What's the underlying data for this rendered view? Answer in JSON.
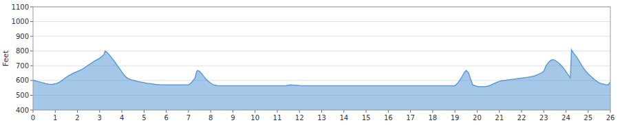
{
  "chart_data": {
    "type": "area",
    "ylabel": "Feet",
    "color": "#5b9bd5",
    "grid": true,
    "xlim": [
      0,
      26
    ],
    "ylim": [
      400,
      1100
    ],
    "xticks": [
      0,
      1,
      2,
      3,
      4,
      5,
      6,
      7,
      8,
      9,
      10,
      11,
      12,
      13,
      14,
      15,
      16,
      17,
      18,
      19,
      20,
      21,
      22,
      23,
      24,
      25,
      26
    ],
    "yticks": [
      400,
      500,
      600,
      700,
      800,
      900,
      1000,
      1100
    ],
    "x": [
      0,
      0.05,
      0.1,
      0.15,
      0.2,
      0.3,
      0.4,
      0.5,
      0.6,
      0.7,
      0.8,
      0.9,
      1.0,
      1.1,
      1.2,
      1.3,
      1.4,
      1.5,
      1.6,
      1.7,
      1.8,
      1.9,
      2.0,
      2.1,
      2.2,
      2.3,
      2.4,
      2.5,
      2.6,
      2.7,
      2.8,
      2.9,
      3.0,
      3.1,
      3.2,
      3.25,
      3.3,
      3.4,
      3.5,
      3.6,
      3.7,
      3.8,
      3.9,
      4.0,
      4.1,
      4.2,
      4.3,
      4.4,
      4.5,
      4.6,
      4.7,
      4.8,
      4.9,
      5.0,
      5.1,
      5.2,
      5.3,
      5.4,
      5.5,
      5.6,
      5.65,
      5.7,
      5.8,
      5.9,
      6.0,
      6.1,
      6.2,
      6.3,
      6.4,
      6.5,
      6.6,
      6.7,
      6.8,
      6.9,
      7.0,
      7.1,
      7.2,
      7.3,
      7.35,
      7.4,
      7.5,
      7.6,
      7.7,
      7.8,
      7.9,
      8.0,
      8.1,
      8.2,
      8.3,
      8.4,
      8.5,
      8.6,
      8.7,
      8.8,
      8.9,
      9.0,
      9.2,
      9.4,
      9.6,
      9.8,
      10.0,
      10.2,
      10.4,
      10.6,
      10.8,
      11.0,
      11.2,
      11.4,
      11.5,
      11.6,
      11.8,
      12.0,
      12.2,
      12.4,
      12.6,
      12.8,
      13.0,
      13.2,
      13.4,
      13.6,
      13.8,
      14.0,
      14.2,
      14.4,
      14.6,
      14.8,
      15.0,
      15.2,
      15.4,
      15.6,
      15.8,
      16.0,
      16.2,
      16.4,
      16.6,
      16.8,
      17.0,
      17.2,
      17.4,
      17.6,
      17.8,
      18.0,
      18.2,
      18.4,
      18.6,
      18.8,
      19.0,
      19.1,
      19.2,
      19.3,
      19.4,
      19.5,
      19.6,
      19.8,
      20.0,
      20.2,
      20.4,
      20.5,
      20.6,
      20.7,
      20.8,
      20.9,
      21.0,
      21.1,
      21.2,
      21.3,
      21.4,
      21.5,
      21.6,
      21.7,
      21.8,
      21.9,
      22.0,
      22.1,
      22.2,
      22.3,
      22.4,
      22.5,
      22.6,
      22.7,
      22.8,
      22.9,
      23.0,
      23.05,
      23.1,
      23.2,
      23.3,
      23.4,
      23.5,
      23.6,
      23.7,
      23.8,
      23.9,
      24.0,
      24.1,
      24.2,
      24.25,
      24.3,
      24.4,
      24.5,
      24.6,
      24.7,
      24.8,
      24.9,
      25.0,
      25.1,
      25.2,
      25.3,
      25.4,
      25.5,
      25.6,
      25.7,
      25.8,
      25.9,
      26.0
    ],
    "values": [
      600,
      600,
      598,
      596,
      594,
      590,
      586,
      582,
      578,
      575,
      574,
      575,
      578,
      582,
      590,
      600,
      612,
      622,
      632,
      640,
      648,
      655,
      662,
      668,
      675,
      685,
      695,
      705,
      715,
      725,
      735,
      742,
      752,
      762,
      778,
      800,
      795,
      780,
      762,
      742,
      722,
      700,
      680,
      658,
      638,
      622,
      612,
      606,
      602,
      598,
      594,
      591,
      588,
      585,
      582,
      580,
      578,
      576,
      574,
      572,
      572,
      571,
      570,
      570,
      570,
      570,
      570,
      570,
      570,
      570,
      570,
      570,
      570,
      570,
      572,
      580,
      598,
      618,
      650,
      668,
      662,
      645,
      625,
      608,
      594,
      582,
      572,
      568,
      566,
      565,
      565,
      565,
      565,
      565,
      565,
      565,
      565,
      565,
      565,
      565,
      565,
      565,
      565,
      565,
      565,
      565,
      565,
      565,
      568,
      570,
      568,
      566,
      565,
      565,
      565,
      565,
      565,
      565,
      565,
      565,
      565,
      565,
      565,
      565,
      565,
      565,
      565,
      565,
      565,
      565,
      565,
      565,
      565,
      565,
      565,
      565,
      565,
      565,
      565,
      565,
      565,
      565,
      565,
      565,
      565,
      565,
      565,
      578,
      598,
      620,
      648,
      668,
      655,
      570,
      560,
      558,
      560,
      562,
      568,
      575,
      582,
      588,
      594,
      598,
      600,
      602,
      604,
      606,
      608,
      610,
      612,
      614,
      616,
      618,
      620,
      622,
      625,
      628,
      632,
      638,
      645,
      652,
      662,
      680,
      700,
      720,
      735,
      742,
      738,
      728,
      715,
      700,
      682,
      660,
      638,
      618,
      808,
      795,
      775,
      755,
      730,
      705,
      682,
      662,
      645,
      632,
      618,
      605,
      594,
      584,
      578,
      575,
      572,
      570,
      590
    ]
  }
}
